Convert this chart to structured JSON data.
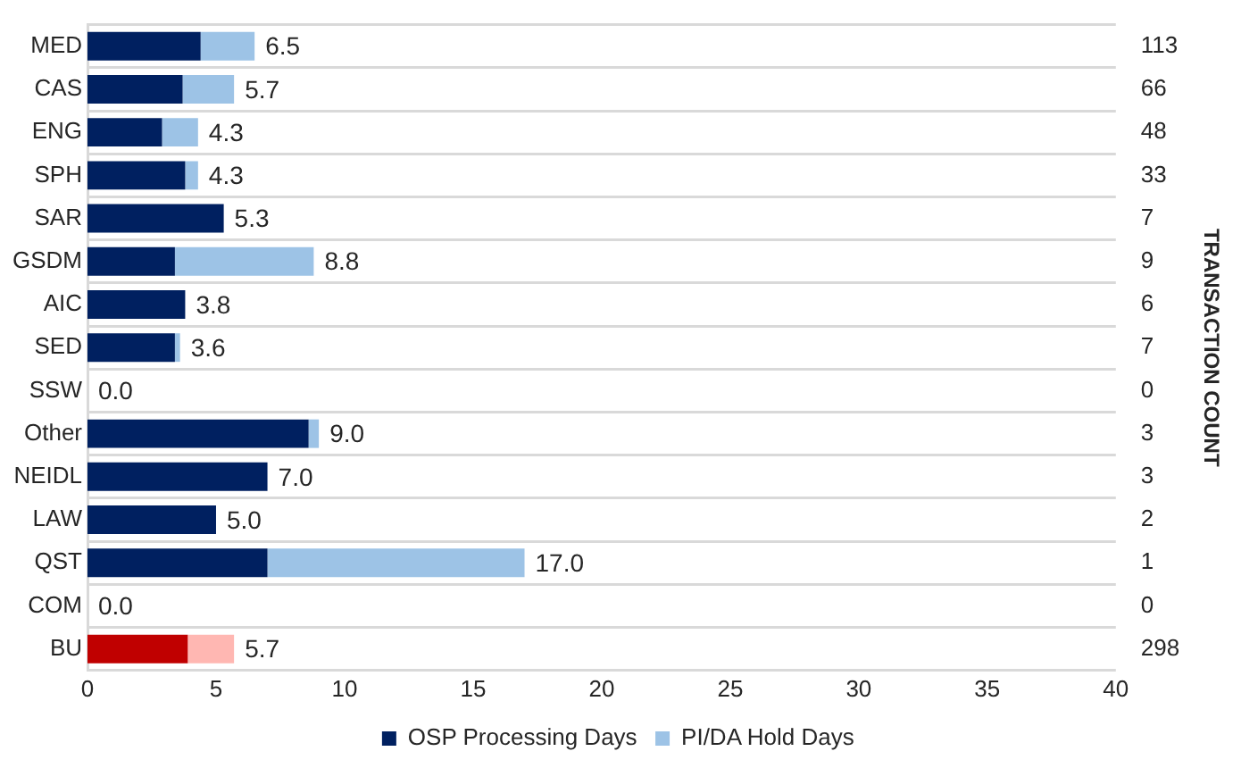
{
  "chart_data": {
    "type": "bar",
    "orientation": "horizontal",
    "stacked": true,
    "categories": [
      "MED",
      "CAS",
      "ENG",
      "SPH",
      "SAR",
      "GSDM",
      "AIC",
      "SED",
      "SSW",
      "Other",
      "NEIDL",
      "LAW",
      "QST",
      "COM",
      "BU"
    ],
    "series": [
      {
        "name": "OSP Processing Days",
        "color": "#002060",
        "colors": [
          "#002060",
          "#002060",
          "#002060",
          "#002060",
          "#002060",
          "#002060",
          "#002060",
          "#002060",
          "#002060",
          "#002060",
          "#002060",
          "#002060",
          "#002060",
          "#002060",
          "#c00000"
        ],
        "values": [
          4.4,
          3.7,
          2.9,
          3.8,
          5.3,
          3.4,
          3.8,
          3.4,
          0,
          8.6,
          7.0,
          5.0,
          7.0,
          0,
          3.9
        ]
      },
      {
        "name": "PI/DA Hold Days",
        "color": "#9dc3e6",
        "colors": [
          "#9dc3e6",
          "#9dc3e6",
          "#9dc3e6",
          "#9dc3e6",
          "#9dc3e6",
          "#9dc3e6",
          "#9dc3e6",
          "#9dc3e6",
          "#9dc3e6",
          "#9dc3e6",
          "#9dc3e6",
          "#9dc3e6",
          "#9dc3e6",
          "#9dc3e6",
          "#ffb7b2"
        ],
        "values": [
          2.1,
          2.0,
          1.4,
          0.5,
          0,
          5.4,
          0,
          0.2,
          0,
          0.4,
          0,
          0,
          10.0,
          0,
          1.8
        ]
      }
    ],
    "totals": [
      "6.5",
      "5.7",
      "4.3",
      "4.3",
      "5.3",
      "8.8",
      "3.8",
      "3.6",
      "0.0",
      "9.0",
      "7.0",
      "5.0",
      "17.0",
      "0.0",
      "5.7"
    ],
    "y2label": "TRANSACTION COUNT",
    "y2_categories": [
      "113",
      "66",
      "48",
      "33",
      "7",
      "9",
      "6",
      "7",
      "0",
      "3",
      "3",
      "2",
      "1",
      "0",
      "298"
    ],
    "xlim": [
      0,
      40
    ],
    "xticks": [
      0,
      5,
      10,
      15,
      20,
      25,
      30,
      35,
      40
    ],
    "grid": "y",
    "legend": "bottom"
  }
}
